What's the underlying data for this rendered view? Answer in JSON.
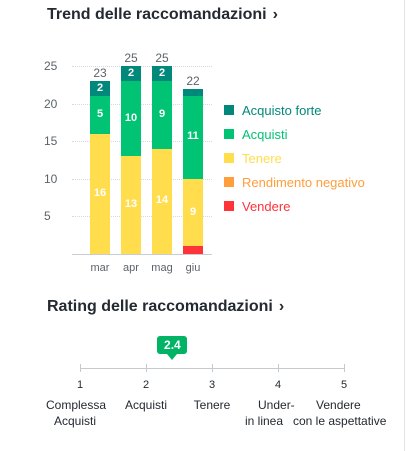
{
  "trend": {
    "title": "Trend delle raccomandazioni",
    "chevron": "›"
  },
  "colors": {
    "acquisto_forte": "#00887b",
    "acquisti": "#00c373",
    "tenere": "#ffdd4d",
    "rendimento_negativo": "#ff9e3b",
    "vendere": "#ff333a",
    "badge": "#00b365"
  },
  "chart_data": {
    "type": "bar",
    "stacked": true,
    "categories": [
      "mar",
      "apr",
      "mag",
      "giu"
    ],
    "series": [
      {
        "name": "Acquisto forte",
        "values": [
          2,
          2,
          2,
          1
        ]
      },
      {
        "name": "Acquisti",
        "values": [
          5,
          10,
          9,
          11
        ]
      },
      {
        "name": "Tenere",
        "values": [
          16,
          13,
          14,
          9
        ]
      },
      {
        "name": "Rendimento negativo",
        "values": [
          0,
          0,
          0,
          0
        ]
      },
      {
        "name": "Vendere",
        "values": [
          0,
          0,
          0,
          1
        ]
      }
    ],
    "totals": [
      23,
      25,
      25,
      22
    ],
    "data_labels": [
      [
        "2",
        "5",
        "16"
      ],
      [
        "2",
        "10",
        "13"
      ],
      [
        "2",
        "9",
        "14"
      ],
      [
        "",
        "11",
        "9"
      ]
    ],
    "yticks": [
      "25",
      "20",
      "15",
      "10",
      "5"
    ],
    "ylim": [
      0,
      27
    ],
    "grid": true,
    "legend_position": "right"
  },
  "legend": [
    {
      "label": "Acquisto forte",
      "color": "#00887b"
    },
    {
      "label": "Acquisti",
      "color": "#00c373"
    },
    {
      "label": "Tenere",
      "color": "#ffdd4d"
    },
    {
      "label": "Rendimento negativo",
      "color": "#ff9e3b"
    },
    {
      "label": "Vendere",
      "color": "#ff333a"
    }
  ],
  "rating": {
    "title": "Rating delle raccomandazioni",
    "chevron": "›",
    "value": "2.4",
    "value_number": 2.4,
    "scale": [
      {
        "num": "1",
        "label_line1": "Complessa",
        "label_line2": "Acquisti"
      },
      {
        "num": "2",
        "label_line1": "Acquisti",
        "label_line2": ""
      },
      {
        "num": "3",
        "label_line1": "Tenere",
        "label_line2": ""
      },
      {
        "num": "4",
        "label_line1": "Under-",
        "label_line2": "in linea"
      },
      {
        "num": "5",
        "label_line1": "Vendere",
        "label_line2": "con le aspettative"
      }
    ]
  }
}
